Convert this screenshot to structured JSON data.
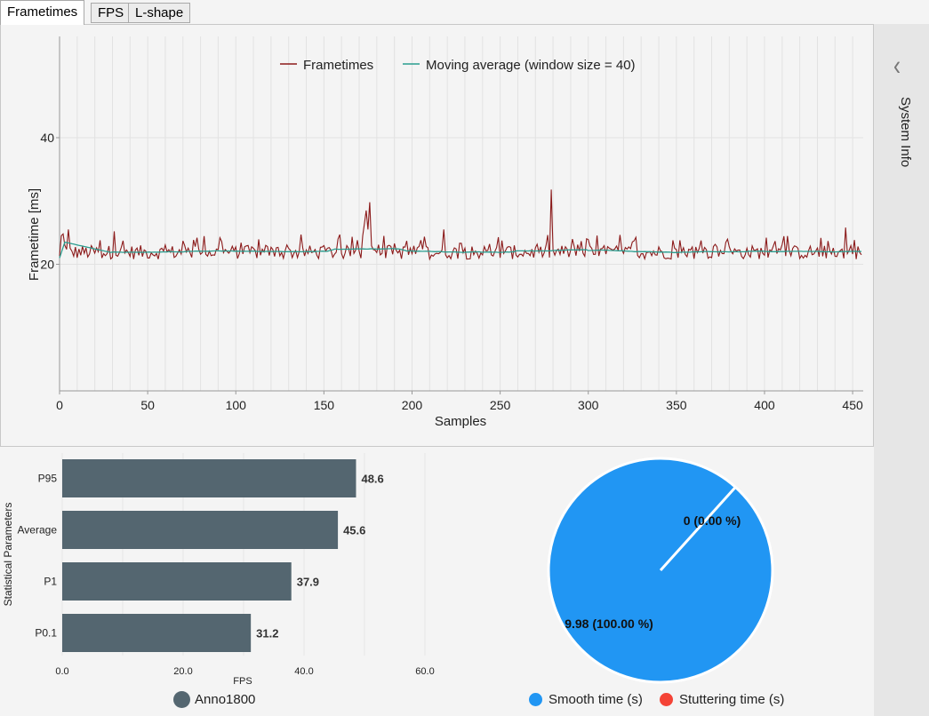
{
  "tabs": [
    {
      "label": "Frametimes",
      "active": true
    },
    {
      "label": "FPS",
      "active": false
    },
    {
      "label": "L-shape",
      "active": false
    }
  ],
  "sidebar": {
    "label": "System Info",
    "collapse_icon": "chevron-left-icon"
  },
  "colors": {
    "frametimes": "#8b1a1a",
    "moving_average": "#2a9d8f",
    "bar": "#546670",
    "smooth": "#2196f3",
    "stuttering": "#f44336",
    "anno": "#546670"
  },
  "chart_data": [
    {
      "type": "line",
      "title": "",
      "xlabel": "Samples",
      "ylabel": "Frametime [ms]",
      "xlim": [
        0,
        456
      ],
      "ylim": [
        0,
        56
      ],
      "xticks": [
        0,
        50,
        100,
        150,
        200,
        250,
        300,
        350,
        400,
        450
      ],
      "yticks": [
        20,
        40
      ],
      "legend": {
        "position": "top-center"
      },
      "series": [
        {
          "name": "Frametimes",
          "description": "455 samples mostly 20.5-24.5 ms; spikes at ~174-176 (up to ~30 ms) and ~279 (~32 ms)",
          "baseline": 21.8,
          "spikes": [
            {
              "x": 5,
              "y": 25.5
            },
            {
              "x": 31,
              "y": 25.2
            },
            {
              "x": 174,
              "y": 28.5
            },
            {
              "x": 176,
              "y": 29.8
            },
            {
              "x": 218,
              "y": 25.5
            },
            {
              "x": 279,
              "y": 31.8
            },
            {
              "x": 446,
              "y": 25.8
            }
          ]
        },
        {
          "name": "Moving average (window size = 40)",
          "values_note": "starts ~21 at x=0, peaks ~23.5 at x=3, settles to ~21.8 across samples"
        }
      ]
    },
    {
      "type": "bar",
      "orientation": "horizontal",
      "xlabel": "FPS",
      "ylabel": "Statistical Parameters",
      "xlim": [
        0,
        60
      ],
      "xticks": [
        "0.0",
        "20.0",
        "40.0",
        "60.0"
      ],
      "categories": [
        "P95",
        "Average",
        "P1",
        "P0.1"
      ],
      "values": [
        48.6,
        45.6,
        37.9,
        31.2
      ],
      "value_labels": [
        "48.6",
        "45.6",
        "37.9",
        "31.2"
      ],
      "legend": [
        {
          "name": "Anno1800"
        }
      ]
    },
    {
      "type": "pie",
      "slices": [
        {
          "name": "Smooth time (s)",
          "value": 9.98,
          "label": "9.98 (100.00 %)"
        },
        {
          "name": "Stuttering time (s)",
          "value": 0,
          "label": "0 (0.00 %)"
        }
      ],
      "legend": {
        "position": "bottom"
      }
    }
  ]
}
